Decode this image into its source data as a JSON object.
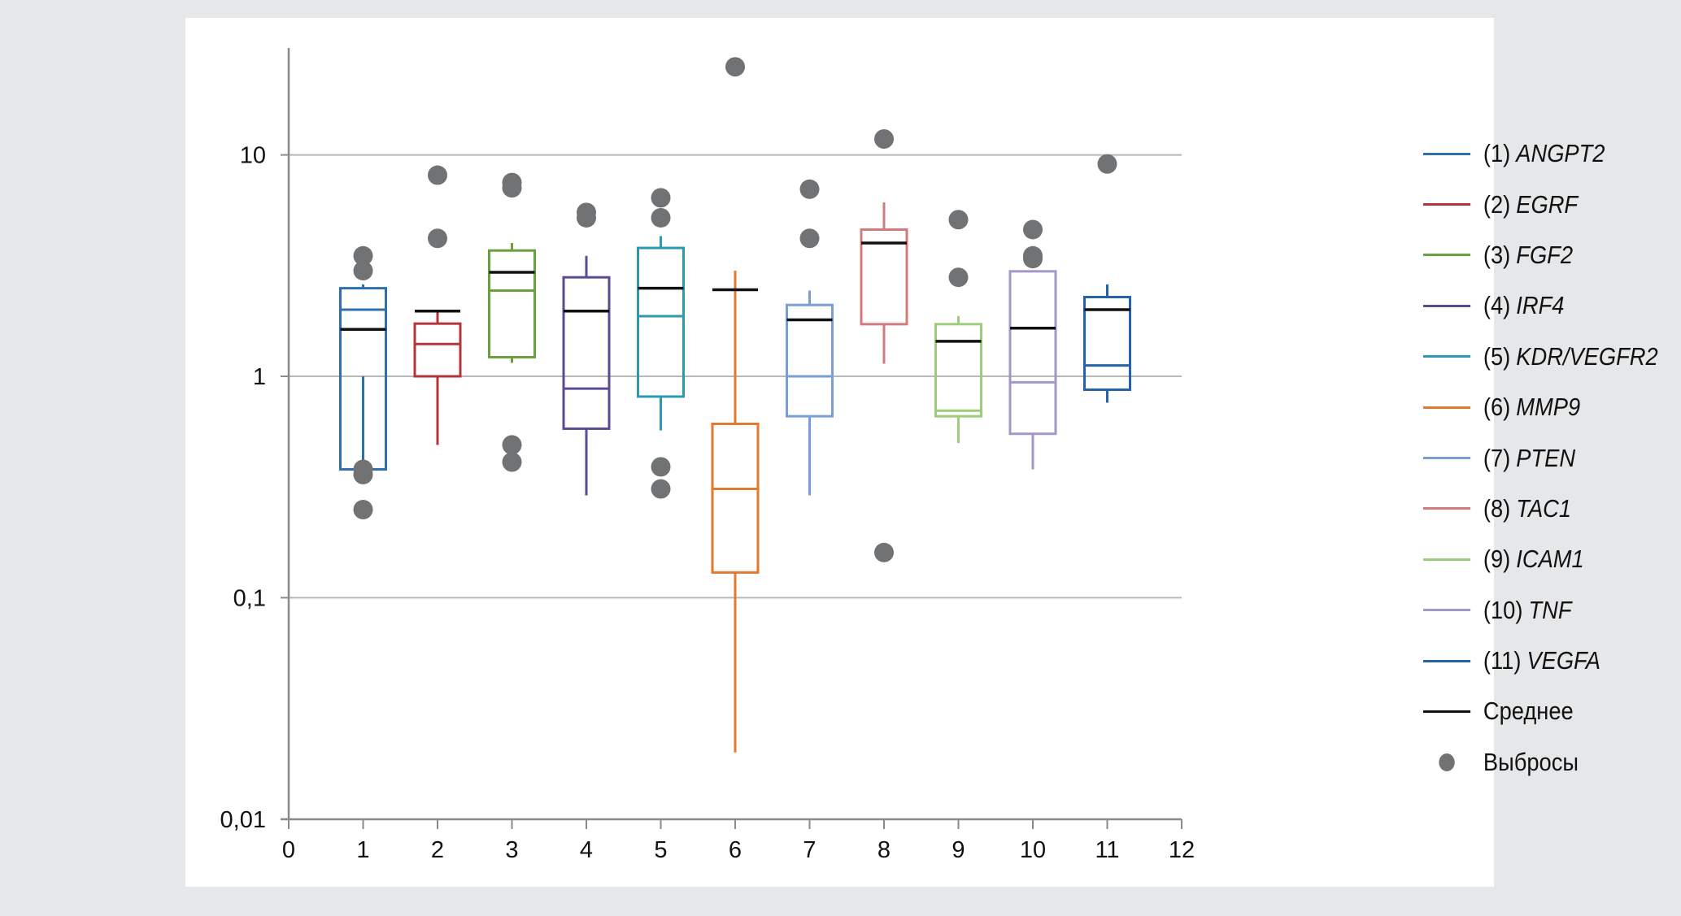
{
  "chart_data": {
    "type": "box",
    "title": "",
    "xlabel": "",
    "ylabel": "",
    "yscale": "log",
    "ylim": [
      0.01,
      30
    ],
    "xlim": [
      0,
      12
    ],
    "x_ticks": [
      "0",
      "1",
      "2",
      "3",
      "4",
      "5",
      "6",
      "7",
      "8",
      "9",
      "10",
      "11",
      "12"
    ],
    "y_ticks": [
      {
        "value": 0.01,
        "label": "0,01"
      },
      {
        "value": 0.1,
        "label": "0,1"
      },
      {
        "value": 1,
        "label": "1"
      },
      {
        "value": 10,
        "label": "10"
      }
    ],
    "grid": "horizontal",
    "legend_position": "right",
    "mean_color": "#111111",
    "outlier_color": "#707274",
    "series": [
      {
        "x": 1,
        "num": "(1)",
        "name": "ANGPT2",
        "color": "#2e6fb0",
        "whisker_low": 0.38,
        "q1": 0.38,
        "median": 2.0,
        "q3": 2.5,
        "whisker_high": 2.6,
        "mean": 1.63,
        "outliers": [
          3.5,
          3.0,
          0.38,
          0.36,
          0.25
        ]
      },
      {
        "x": 2,
        "num": "(2)",
        "name": "EGRF",
        "color": "#b5343a",
        "whisker_low": 0.49,
        "q1": 1.0,
        "median": 1.4,
        "q3": 1.73,
        "whisker_high": 1.97,
        "mean": 1.97,
        "outliers": [
          8.1,
          4.2
        ]
      },
      {
        "x": 3,
        "num": "(3)",
        "name": "FGF2",
        "color": "#6aa13f",
        "whisker_low": 1.15,
        "q1": 1.22,
        "median": 2.44,
        "q3": 3.7,
        "whisker_high": 4.0,
        "mean": 2.95,
        "outliers": [
          7.5,
          7.1,
          0.49,
          0.41
        ]
      },
      {
        "x": 4,
        "num": "(4)",
        "name": "IRF4",
        "color": "#5c4a94",
        "whisker_low": 0.29,
        "q1": 0.58,
        "median": 0.88,
        "q3": 2.8,
        "whisker_high": 3.5,
        "mean": 1.97,
        "outliers": [
          5.5,
          5.2
        ]
      },
      {
        "x": 5,
        "num": "(5)",
        "name": "KDR/VEGFR2",
        "color": "#2b9ab0",
        "whisker_low": 0.57,
        "q1": 0.81,
        "median": 1.87,
        "q3": 3.8,
        "whisker_high": 4.3,
        "mean": 2.5,
        "outliers": [
          6.4,
          5.2,
          0.39,
          0.31
        ]
      },
      {
        "x": 6,
        "num": "(6)",
        "name": "MMP9",
        "color": "#e07a2e",
        "whisker_low": 0.02,
        "q1": 0.13,
        "median": 0.31,
        "q3": 0.61,
        "whisker_high": 3.0,
        "mean": 2.46,
        "outliers": [
          25
        ]
      },
      {
        "x": 7,
        "num": "(7)",
        "name": "PTEN",
        "color": "#7a9fd4",
        "whisker_low": 0.29,
        "q1": 0.66,
        "median": 1.0,
        "q3": 2.1,
        "whisker_high": 2.44,
        "mean": 1.8,
        "outliers": [
          7.0,
          4.2
        ]
      },
      {
        "x": 8,
        "num": "(8)",
        "name": "TAC1",
        "color": "#d37a7e",
        "whisker_low": 1.14,
        "q1": 1.72,
        "median": 4.6,
        "q3": 4.6,
        "whisker_high": 6.1,
        "mean": 4.0,
        "outliers": [
          11.8,
          0.16
        ]
      },
      {
        "x": 9,
        "num": "(9)",
        "name": "ICAM1",
        "color": "#9ccc7c",
        "whisker_low": 0.5,
        "q1": 0.66,
        "median": 0.7,
        "q3": 1.72,
        "whisker_high": 1.87,
        "mean": 1.44,
        "outliers": [
          5.1,
          2.8
        ]
      },
      {
        "x": 10,
        "num": "(10)",
        "name": "TNF",
        "color": "#a596c8",
        "whisker_low": 0.38,
        "q1": 0.55,
        "median": 0.94,
        "q3": 2.98,
        "whisker_high": 2.98,
        "mean": 1.65,
        "outliers": [
          4.6,
          3.5,
          3.4
        ]
      },
      {
        "x": 11,
        "num": "(11)",
        "name": "VEGFA",
        "color": "#2563a8",
        "whisker_low": 0.76,
        "q1": 0.87,
        "median": 1.12,
        "q3": 2.28,
        "whisker_high": 2.6,
        "mean": 2.0,
        "outliers": [
          9.1
        ]
      }
    ],
    "legend_extra": [
      {
        "label": "Среднее",
        "kind": "line",
        "color": "#111111"
      },
      {
        "label": "Выбросы",
        "kind": "dot",
        "color": "#707274"
      }
    ]
  }
}
